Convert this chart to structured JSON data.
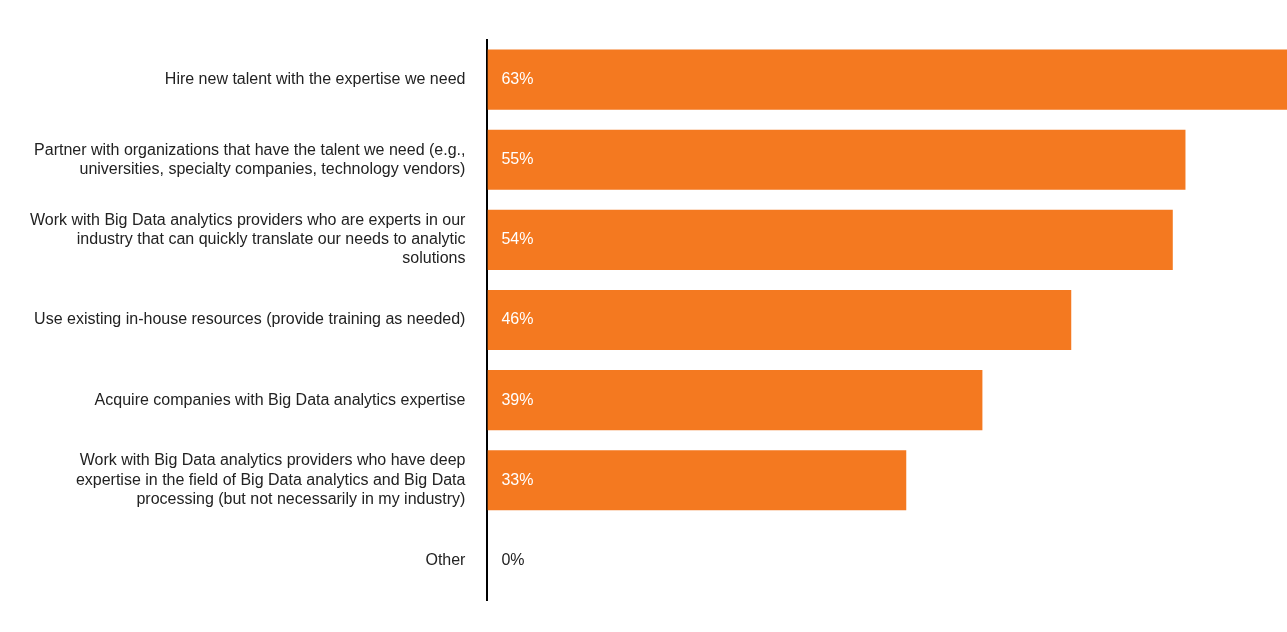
{
  "chart_data": {
    "type": "bar",
    "orientation": "horizontal",
    "categories": [
      "Hire new talent with the expertise we need",
      "Partner with organizations that have the talent we need (e.g., universities, specialty companies, technology vendors)",
      "Work with Big Data analytics providers who are experts in our industry that can quickly translate our needs to analytic solutions",
      "Use existing in-house resources (provide training as needed)",
      "Acquire companies with Big Data analytics expertise",
      "Work with Big Data analytics providers who have deep expertise in the field of Big Data analytics and Big Data processing (but not necessarily in my industry)",
      "Other"
    ],
    "values": [
      63,
      55,
      54,
      46,
      39,
      33,
      0
    ],
    "value_labels": [
      "63%",
      "55%",
      "54%",
      "46%",
      "39%",
      "33%",
      "0%"
    ],
    "color": "#f47920",
    "xlim": [
      0,
      63
    ],
    "tick_labels": "y",
    "legend": false
  }
}
